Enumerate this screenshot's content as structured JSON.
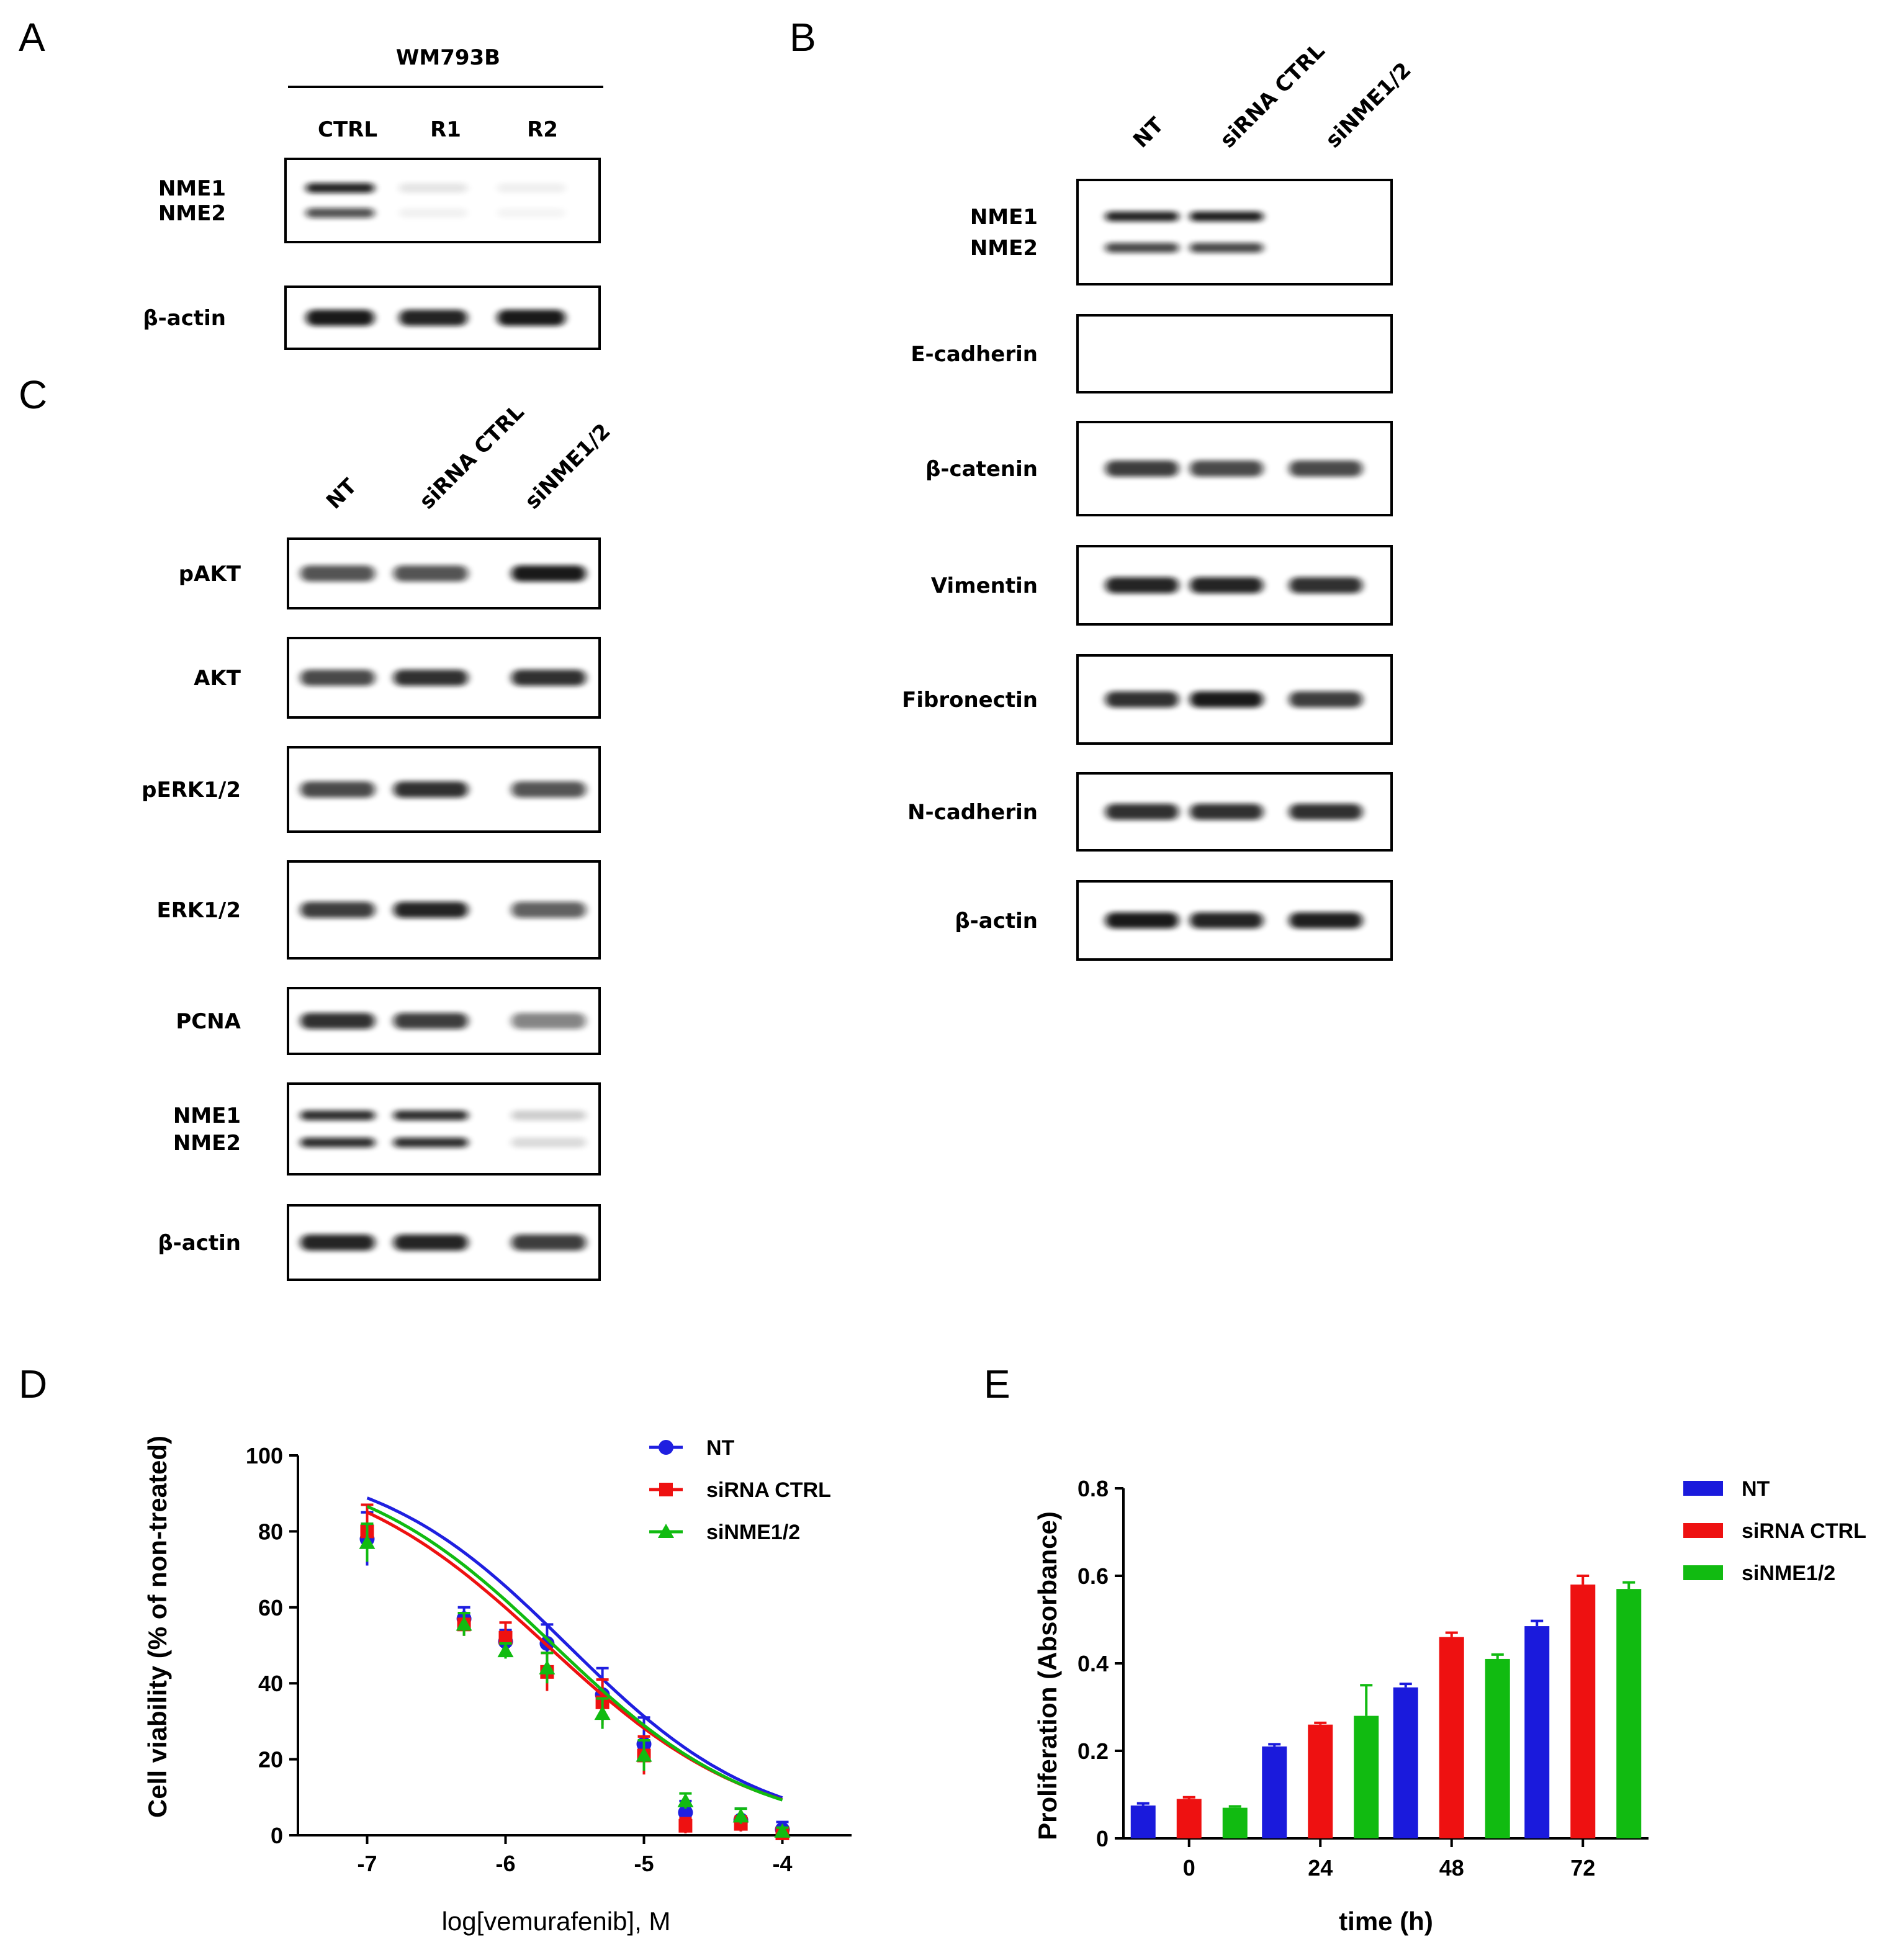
{
  "panels": {
    "A": {
      "letter": "A",
      "cell_line": "WM793B",
      "lanes": [
        "CTRL",
        "R1",
        "R2"
      ],
      "blots": [
        {
          "labels": [
            "NME1",
            "NME2"
          ],
          "bands": [
            [
              0.9,
              0.1,
              0.06
            ],
            [
              0.7,
              0.05,
              0.04
            ]
          ]
        },
        {
          "labels": [
            "β-actin"
          ],
          "bands": [
            [
              0.95,
              0.9,
              0.95
            ]
          ]
        }
      ]
    },
    "B": {
      "letter": "B",
      "lanes": [
        "NT",
        "siRNA CTRL",
        "siNME1/2"
      ],
      "blots": [
        {
          "labels": [
            "NME1",
            "NME2"
          ],
          "bands": [
            [
              0.9,
              0.92,
              0.0
            ],
            [
              0.75,
              0.75,
              0.0
            ]
          ]
        },
        {
          "labels": [
            "E-cadherin"
          ],
          "bands": [
            [
              0.0,
              0.0,
              0.0
            ]
          ]
        },
        {
          "labels": [
            "β-catenin"
          ],
          "bands": [
            [
              0.8,
              0.75,
              0.75
            ]
          ]
        },
        {
          "labels": [
            "Vimentin"
          ],
          "bands": [
            [
              0.9,
              0.9,
              0.85
            ]
          ]
        },
        {
          "labels": [
            "Fibronectin"
          ],
          "bands": [
            [
              0.85,
              0.95,
              0.8
            ]
          ]
        },
        {
          "labels": [
            "N-cadherin"
          ],
          "bands": [
            [
              0.85,
              0.85,
              0.85
            ]
          ]
        },
        {
          "labels": [
            "β-actin"
          ],
          "bands": [
            [
              0.95,
              0.9,
              0.92
            ]
          ]
        }
      ]
    },
    "C": {
      "letter": "C",
      "lanes": [
        "NT",
        "siRNA CTRL",
        "siNME1/2"
      ],
      "blots": [
        {
          "labels": [
            "pAKT"
          ],
          "bands": [
            [
              0.7,
              0.7,
              0.95
            ]
          ]
        },
        {
          "labels": [
            "AKT"
          ],
          "bands": [
            [
              0.75,
              0.85,
              0.85
            ]
          ]
        },
        {
          "labels": [
            "pERK1/2"
          ],
          "bands": [
            [
              0.75,
              0.85,
              0.7
            ]
          ]
        },
        {
          "labels": [
            "ERK1/2"
          ],
          "bands": [
            [
              0.8,
              0.9,
              0.65
            ]
          ]
        },
        {
          "labels": [
            "PCNA"
          ],
          "bands": [
            [
              0.85,
              0.8,
              0.5
            ]
          ]
        },
        {
          "labels": [
            "NME1",
            "NME2"
          ],
          "bands": [
            [
              0.85,
              0.85,
              0.2
            ],
            [
              0.85,
              0.85,
              0.15
            ]
          ]
        },
        {
          "labels": [
            "β-actin"
          ],
          "bands": [
            [
              0.9,
              0.9,
              0.8
            ]
          ]
        }
      ]
    },
    "D": {
      "letter": "D",
      "chart_data": {
        "type": "scatter",
        "xlabel": "log[vemurafenib], M",
        "ylabel": "Cell viability (% of non-treated)",
        "xlim": [
          -7.5,
          -3.5
        ],
        "ylim": [
          0,
          100
        ],
        "xticks": [
          -7,
          -6,
          -5,
          -4
        ],
        "yticks": [
          0,
          20,
          40,
          60,
          80,
          100
        ],
        "legend_position": "top-right",
        "series": [
          {
            "name": "NT",
            "color": "#1f1fe0",
            "marker": "circle",
            "x": [
              -7,
              -6.3,
              -6,
              -5.7,
              -5.3,
              -5,
              -4.7,
              -4.3,
              -4
            ],
            "y": [
              78,
              57,
              51,
              50.5,
              37,
              24,
              6,
              4,
              1.5
            ],
            "err": [
              7,
              3,
              3,
              5,
              7,
              7,
              3,
              3,
              2
            ],
            "fit": {
              "top": 100,
              "bottom": 0,
              "logIC50": -5.55,
              "hill": -0.62
            }
          },
          {
            "name": "siRNA CTRL",
            "color": "#ee1111",
            "marker": "square",
            "x": [
              -7,
              -6.3,
              -6,
              -5.7,
              -5.3,
              -5,
              -4.7,
              -4.3,
              -4
            ],
            "y": [
              80,
              55.5,
              52,
              43,
              35,
              21,
              2.5,
              3,
              0.5
            ],
            "err": [
              7,
              3,
              4,
              5,
              6,
              5,
              2,
              2,
              1
            ],
            "fit": {
              "top": 100,
              "bottom": 0,
              "logIC50": -5.7,
              "hill": -0.58
            }
          },
          {
            "name": "siNME1/2",
            "color": "#11bb11",
            "marker": "triangle",
            "x": [
              -7,
              -6.3,
              -6,
              -5.7,
              -5.3,
              -5,
              -4.7,
              -4.3,
              -4
            ],
            "y": [
              77,
              55.5,
              48.5,
              44,
              32,
              21,
              9,
              5,
              1
            ],
            "err": [
              5,
              3,
              2,
              4,
              4,
              4,
              2,
              2,
              1
            ],
            "fit": {
              "top": 100,
              "bottom": 0,
              "logIC50": -5.65,
              "hill": -0.6
            }
          }
        ]
      }
    },
    "E": {
      "letter": "E",
      "chart_data": {
        "type": "bar",
        "xlabel": "time (h)",
        "ylabel": "Proliferation (Absorbance)",
        "categories": [
          "0",
          "24",
          "48",
          "72"
        ],
        "ylim": [
          0,
          0.8
        ],
        "yticks": [
          0.0,
          0.2,
          0.4,
          0.6,
          0.8
        ],
        "legend_position": "top-right",
        "series": [
          {
            "name": "NT",
            "color": "#1a1adc",
            "values": [
              0.075,
              0.21,
              0.345,
              0.485
            ],
            "err": [
              0.005,
              0.005,
              0.008,
              0.012
            ]
          },
          {
            "name": "siRNA CTRL",
            "color": "#ee1111",
            "values": [
              0.09,
              0.26,
              0.46,
              0.58
            ],
            "err": [
              0.004,
              0.004,
              0.01,
              0.02
            ]
          },
          {
            "name": "siNME1/2",
            "color": "#11bb11",
            "values": [
              0.07,
              0.28,
              0.41,
              0.57
            ],
            "err": [
              0.003,
              0.07,
              0.01,
              0.015
            ]
          }
        ]
      }
    }
  }
}
